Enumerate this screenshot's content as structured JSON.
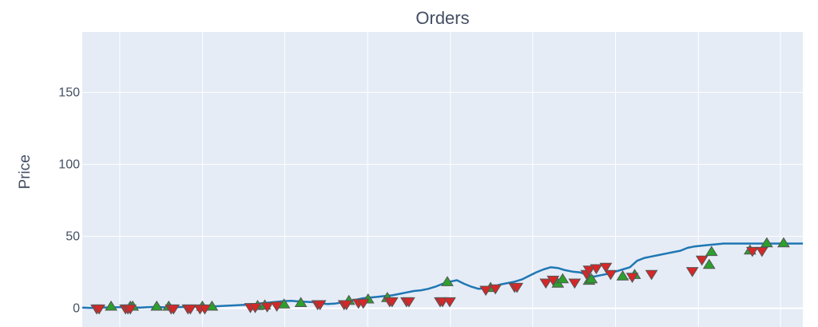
{
  "chart_data": {
    "type": "line",
    "title": "Orders",
    "ylabel": "Price",
    "xlabel": "",
    "ylim": [
      -13,
      192
    ],
    "yticks": [
      0,
      50,
      100,
      150
    ],
    "grid": true,
    "legend": "none",
    "colors": {
      "plot_bg": "#e5ecf6",
      "grid": "#ffffff",
      "line": "#1f77b4",
      "buy_marker": "#2ca02c",
      "sell_marker": "#d62728",
      "marker_edge": "#555555"
    },
    "series": [
      {
        "x": [
          0,
          3,
          6,
          9,
          12,
          15,
          18,
          21,
          24,
          27,
          30,
          33,
          36,
          39,
          42,
          45,
          48,
          51,
          54,
          57,
          60,
          63,
          66,
          69,
          72,
          75,
          78,
          81,
          84,
          87,
          90,
          93,
          96,
          99,
          102,
          105,
          108,
          111,
          114,
          117,
          120,
          123,
          126,
          129,
          132,
          135,
          138,
          141,
          144,
          147,
          150,
          153,
          156,
          159,
          162,
          165,
          168,
          171,
          174,
          177,
          180,
          183,
          186,
          189,
          192,
          195,
          198,
          201,
          204,
          207,
          210,
          213,
          216,
          219,
          222,
          225,
          228,
          231,
          234,
          237,
          240,
          243,
          246,
          249,
          252,
          255,
          258,
          261,
          264,
          267,
          270,
          273,
          276,
          279,
          282,
          285,
          288,
          291,
          294,
          297,
          300
        ],
        "y": [
          0.5,
          0.3,
          0.4,
          0.6,
          0.5,
          0.7,
          0.8,
          0.6,
          0.5,
          0.7,
          0.9,
          0.8,
          0.6,
          0.7,
          0.9,
          1.0,
          1.2,
          1.1,
          1.3,
          1.5,
          1.8,
          2.0,
          2.3,
          2.5,
          3.0,
          3.5,
          4.0,
          4.5,
          5.0,
          5.2,
          4.8,
          4.5,
          4.3,
          3.5,
          3.0,
          3.2,
          4.0,
          5.0,
          6.0,
          7.0,
          7.5,
          8.0,
          8.5,
          9.0,
          10.0,
          11.0,
          12.0,
          12.5,
          13.5,
          15.0,
          17.0,
          18.5,
          19.5,
          17.0,
          15.0,
          13.5,
          14.0,
          15.0,
          16.5,
          17.5,
          18.5,
          20.0,
          22.5,
          25.0,
          27.0,
          28.5,
          28.0,
          26.5,
          25.5,
          25.0,
          23.5,
          22.0,
          23.0,
          24.0,
          25.5,
          27.0,
          28.5,
          33.0,
          35.0,
          36.0,
          37.0,
          38.0,
          39.0,
          40.0,
          42.0,
          43.0,
          43.5,
          44.0,
          44.5,
          45.0,
          45.0,
          45.0,
          45.0,
          45.0,
          45.0,
          45.0,
          45.0,
          45.0,
          45.0,
          45.0,
          45.0
        ]
      },
      {
        "name": "buy",
        "x": [
          12,
          20,
          21,
          31,
          36,
          50,
          54,
          73,
          76,
          84,
          91,
          111,
          119,
          127,
          152,
          170,
          198,
          200,
          211,
          212,
          225,
          230,
          261,
          262,
          278,
          285,
          292
        ],
        "y": [
          1,
          1,
          1,
          1,
          1,
          1,
          1,
          1.5,
          1.8,
          2.5,
          3.5,
          5,
          6,
          7,
          18,
          14,
          17,
          20,
          19,
          20,
          22,
          23,
          30,
          39,
          40,
          45,
          45
        ]
      },
      {
        "name": "sell",
        "x": [
          6,
          7,
          18,
          19,
          20,
          37,
          38,
          44,
          45,
          49,
          51,
          70,
          72,
          77,
          81,
          98,
          99,
          109,
          110,
          115,
          117,
          128,
          129,
          135,
          136,
          149,
          150,
          153,
          168,
          172,
          180,
          181,
          193,
          196,
          205,
          210,
          211,
          214,
          218,
          220,
          229,
          237,
          254,
          258,
          279,
          283
        ],
        "y": [
          0,
          0,
          0,
          0,
          0,
          0,
          0,
          0,
          0,
          0,
          0,
          1,
          1,
          1.5,
          2,
          3,
          3,
          3,
          3,
          4,
          4,
          5,
          5,
          5,
          5,
          5,
          5,
          5,
          13,
          14,
          15,
          15,
          18,
          20,
          18,
          24,
          27,
          28,
          29,
          24,
          22,
          24,
          26,
          34,
          40,
          40
        ]
      }
    ]
  }
}
